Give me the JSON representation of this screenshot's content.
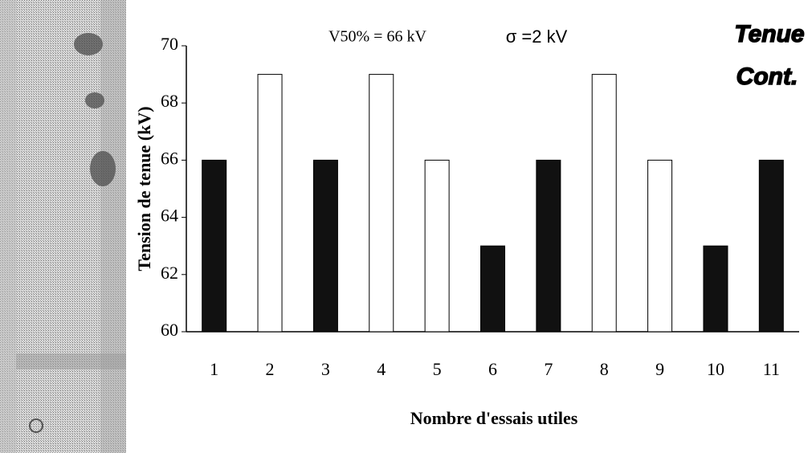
{
  "chart_data": {
    "type": "bar",
    "annotations": [
      "V50% = 66 kV",
      "σ =2 kV",
      "Tenue",
      "Cont."
    ],
    "y_label": "Tension de tenue (kV)",
    "x_label": "Nombre d'essais utiles",
    "categories": [
      "1",
      "2",
      "3",
      "4",
      "5",
      "6",
      "7",
      "8",
      "9",
      "10",
      "11"
    ],
    "values": [
      66,
      69,
      66,
      69,
      66,
      63,
      66,
      69,
      66,
      63,
      66
    ],
    "colors": [
      "#111111",
      "#ffffff",
      "#111111",
      "#ffffff",
      "#ffffff",
      "#111111",
      "#111111",
      "#ffffff",
      "#ffffff",
      "#111111",
      "#111111"
    ],
    "ylim": [
      60,
      70
    ],
    "yticks": [
      60,
      62,
      64,
      66,
      68,
      70
    ],
    "grid": false
  }
}
